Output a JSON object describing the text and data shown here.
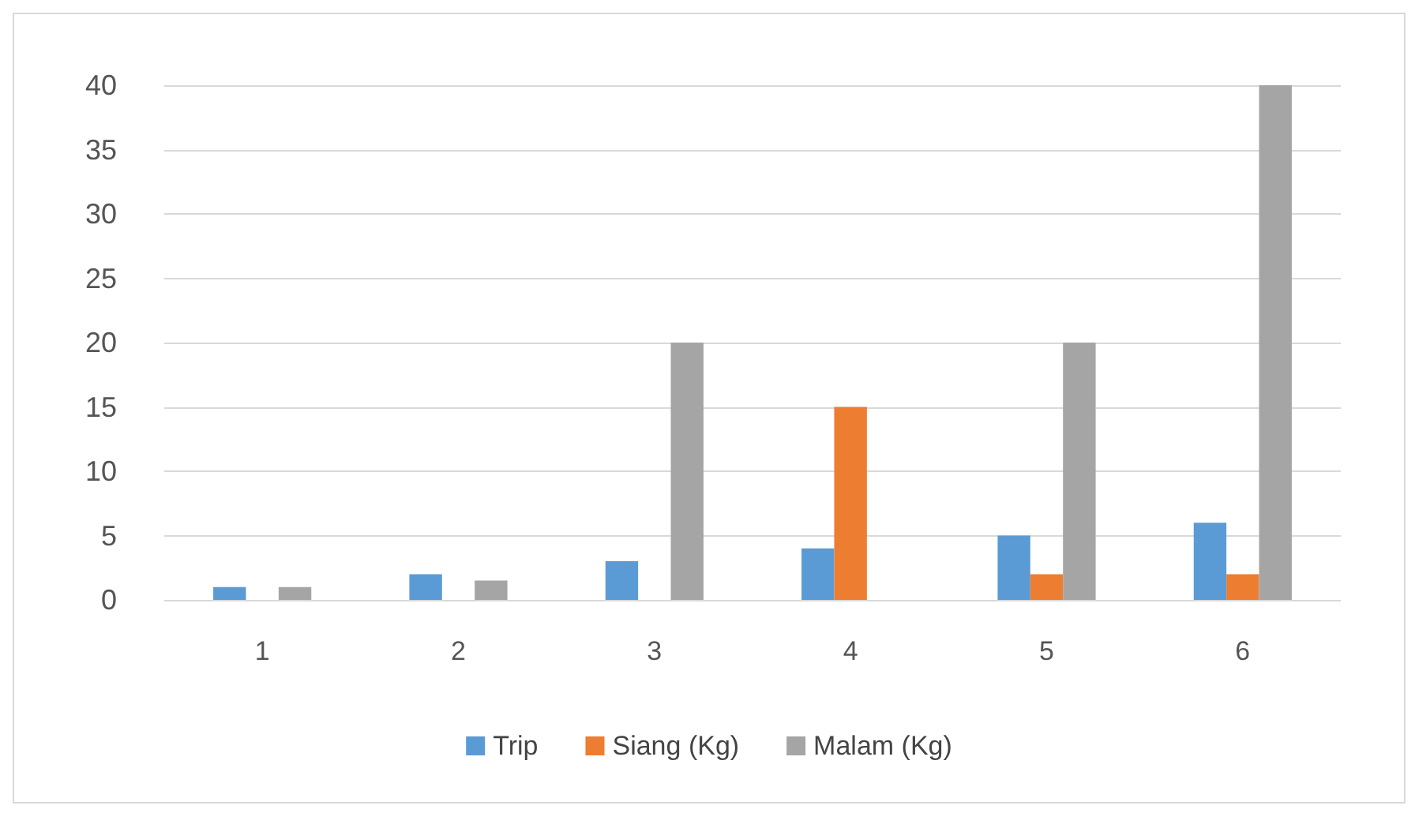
{
  "chart_data": {
    "type": "bar",
    "categories": [
      "1",
      "2",
      "3",
      "4",
      "5",
      "6"
    ],
    "series": [
      {
        "name": "Trip",
        "color": "#5b9bd5",
        "values": [
          1,
          2,
          3,
          4,
          5,
          6
        ]
      },
      {
        "name": "Siang (Kg)",
        "color": "#ed7d31",
        "values": [
          0,
          0,
          0,
          15,
          2,
          2
        ]
      },
      {
        "name": "Malam (Kg)",
        "color": "#a5a5a5",
        "values": [
          1,
          1.5,
          20,
          0,
          20,
          40
        ]
      }
    ],
    "ylim": [
      0,
      40
    ],
    "yticks": [
      0,
      5,
      10,
      15,
      20,
      25,
      30,
      35,
      40
    ],
    "grid": "y",
    "legend": "bottom"
  }
}
